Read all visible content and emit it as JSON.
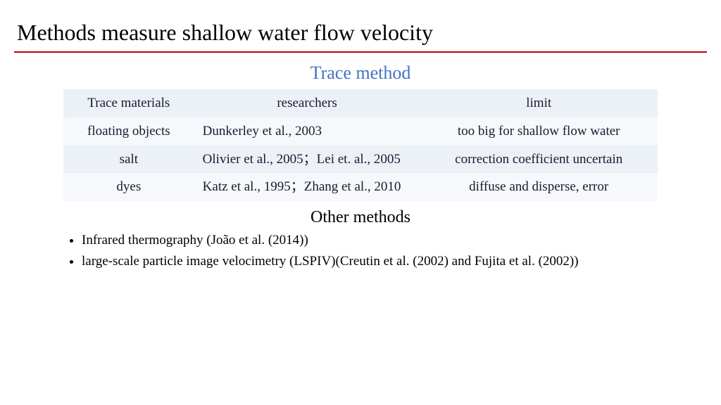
{
  "title": "Methods measure shallow water flow velocity",
  "trace": {
    "heading": "Trace method",
    "columns": [
      "Trace materials",
      "researchers",
      "limit"
    ],
    "rows": [
      {
        "material": "floating objects",
        "researchers": "Dunkerley et al., 2003",
        "limit": "too big for shallow flow water"
      },
      {
        "material": "salt",
        "researchers": "Olivier et al., 2005；Lei et. al., 2005",
        "limit": "correction coefficient uncertain"
      },
      {
        "material": "dyes",
        "researchers": "Katz et al., 1995；Zhang et al., 2010",
        "limit": "diffuse and disperse, error"
      }
    ]
  },
  "other": {
    "heading": "Other methods",
    "bullets": [
      "Infrared thermography (João et al. (2014))",
      "large-scale particle image velocimetry (LSPIV)(Creutin et al. (2002) and Fujita et al. (2002))"
    ]
  },
  "style": {
    "title_color": "#000000",
    "rule_color": "#c00000",
    "trace_heading_color": "#4472c4",
    "row_odd_bg": "#ecf0f7",
    "row_even_bg": "#f6f8fb",
    "background": "#ffffff"
  }
}
